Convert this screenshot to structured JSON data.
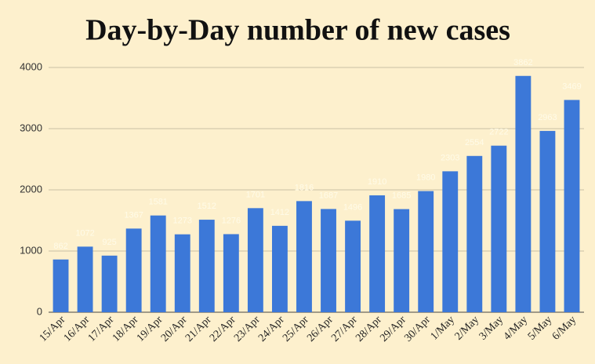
{
  "chart_data": {
    "type": "bar",
    "title": "Day-by-Day number of new cases",
    "categories": [
      "15/Apr",
      "16/Apr",
      "17/Apr",
      "18/Apr",
      "19/Apr",
      "20/Apr",
      "21/Apr",
      "22/Apr",
      "23/Apr",
      "24/Apr",
      "25/Apr",
      "26/Apr",
      "27/Apr",
      "28/Apr",
      "29/Apr",
      "30/Apr",
      "1/May",
      "2/May",
      "3/May",
      "4/May",
      "5/May",
      "6/May"
    ],
    "values": [
      862,
      1072,
      925,
      1367,
      1581,
      1273,
      1512,
      1276,
      1701,
      1412,
      1816,
      1687,
      1496,
      1910,
      1685,
      1980,
      2303,
      2554,
      2722,
      3862,
      2963,
      3469
    ],
    "color": "#3c78d8",
    "ylim": [
      0,
      4000
    ],
    "yticks": [
      0,
      1000,
      2000,
      3000,
      4000
    ],
    "grid": true,
    "value_labels_shown": true
  }
}
